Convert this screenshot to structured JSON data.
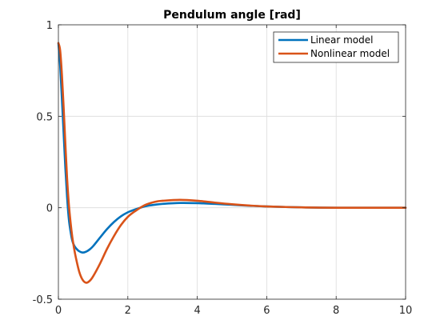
{
  "chart_data": {
    "type": "line",
    "title": "Pendulum angle [rad]",
    "xlabel": "",
    "ylabel": "",
    "xlim": [
      0,
      10
    ],
    "ylim": [
      -0.5,
      1
    ],
    "xticks": [
      0,
      2,
      4,
      6,
      8,
      10
    ],
    "yticks": [
      -0.5,
      0,
      0.5,
      1
    ],
    "xtick_labels": [
      "0",
      "2",
      "4",
      "6",
      "8",
      "10"
    ],
    "ytick_labels": [
      "-0.5",
      "0",
      "0.5",
      "1"
    ],
    "grid": true,
    "legend_position": "top-right",
    "series": [
      {
        "name": "Linear model",
        "color": "#0072BD",
        "x": [
          0,
          0.05,
          0.1,
          0.15,
          0.2,
          0.25,
          0.3,
          0.35,
          0.4,
          0.45,
          0.5,
          0.6,
          0.7,
          0.8,
          0.9,
          1.0,
          1.2,
          1.4,
          1.6,
          1.8,
          2.0,
          2.2,
          2.5,
          2.8,
          3.0,
          3.5,
          4.0,
          4.5,
          5.0,
          5.5,
          6.0,
          7.0,
          8.0,
          9.0,
          10.0
        ],
        "y": [
          0.9,
          0.78,
          0.6,
          0.41,
          0.22,
          0.06,
          -0.06,
          -0.13,
          -0.18,
          -0.205,
          -0.22,
          -0.238,
          -0.245,
          -0.24,
          -0.228,
          -0.21,
          -0.163,
          -0.117,
          -0.078,
          -0.047,
          -0.025,
          -0.01,
          0.008,
          0.017,
          0.021,
          0.026,
          0.025,
          0.021,
          0.016,
          0.011,
          0.007,
          0.002,
          0.0,
          0.0,
          0.0
        ]
      },
      {
        "name": "Nonlinear model",
        "color": "#D95319",
        "x": [
          0,
          0.05,
          0.1,
          0.15,
          0.2,
          0.25,
          0.3,
          0.35,
          0.4,
          0.45,
          0.5,
          0.6,
          0.7,
          0.8,
          0.9,
          1.0,
          1.2,
          1.4,
          1.6,
          1.8,
          2.0,
          2.2,
          2.5,
          2.8,
          3.0,
          3.5,
          4.0,
          4.5,
          5.0,
          5.5,
          6.0,
          7.0,
          8.0,
          9.0,
          10.0
        ],
        "y": [
          0.9,
          0.86,
          0.73,
          0.55,
          0.35,
          0.16,
          0.02,
          -0.08,
          -0.16,
          -0.22,
          -0.27,
          -0.35,
          -0.395,
          -0.41,
          -0.4,
          -0.375,
          -0.305,
          -0.225,
          -0.155,
          -0.095,
          -0.05,
          -0.02,
          0.015,
          0.033,
          0.038,
          0.043,
          0.038,
          0.028,
          0.019,
          0.012,
          0.007,
          0.002,
          0.0,
          0.0,
          0.0
        ]
      }
    ]
  }
}
